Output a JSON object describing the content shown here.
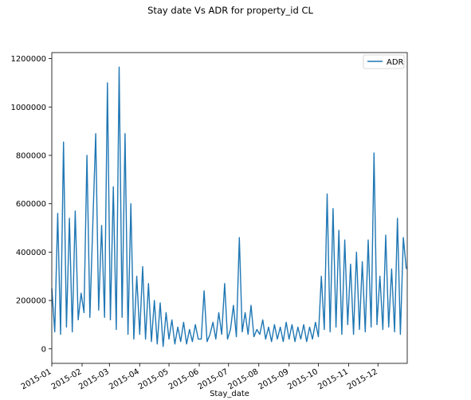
{
  "chart_data": {
    "type": "line",
    "title": "Stay date Vs ADR for property_id CL",
    "xlabel": "Stay_date",
    "ylabel": "",
    "x_tick_labels": [
      "2015-01",
      "2015-02",
      "2015-03",
      "2015-04",
      "2015-05",
      "2015-06",
      "2015-07",
      "2015-08",
      "2015-09",
      "2015-10",
      "2015-11",
      "2015-12"
    ],
    "y_tick_labels": [
      "0",
      "200000",
      "400000",
      "600000",
      "800000",
      "1000000",
      "1200000"
    ],
    "y_ticks": [
      0,
      200000,
      400000,
      600000,
      800000,
      1000000,
      1200000
    ],
    "ylim": [
      -60000,
      1225000
    ],
    "xlim": [
      "2015-01-01",
      "2015-12-31"
    ],
    "legend": {
      "position": "upper right",
      "entries": [
        "ADR"
      ]
    },
    "grid": false,
    "color": "#1f77b4",
    "series": [
      {
        "name": "ADR",
        "x": [
          "2015-01-01",
          "2015-01-04",
          "2015-01-07",
          "2015-01-10",
          "2015-01-13",
          "2015-01-16",
          "2015-01-19",
          "2015-01-22",
          "2015-01-25",
          "2015-01-28",
          "2015-01-31",
          "2015-02-03",
          "2015-02-06",
          "2015-02-09",
          "2015-02-12",
          "2015-02-15",
          "2015-02-18",
          "2015-02-21",
          "2015-02-24",
          "2015-02-27",
          "2015-03-02",
          "2015-03-05",
          "2015-03-08",
          "2015-03-11",
          "2015-03-14",
          "2015-03-17",
          "2015-03-20",
          "2015-03-23",
          "2015-03-26",
          "2015-03-29",
          "2015-04-01",
          "2015-04-04",
          "2015-04-07",
          "2015-04-10",
          "2015-04-13",
          "2015-04-16",
          "2015-04-19",
          "2015-04-22",
          "2015-04-25",
          "2015-04-28",
          "2015-05-01",
          "2015-05-04",
          "2015-05-07",
          "2015-05-10",
          "2015-05-13",
          "2015-05-16",
          "2015-05-19",
          "2015-05-22",
          "2015-05-25",
          "2015-05-28",
          "2015-05-31",
          "2015-06-03",
          "2015-06-06",
          "2015-06-09",
          "2015-06-12",
          "2015-06-15",
          "2015-06-18",
          "2015-06-21",
          "2015-06-24",
          "2015-06-27",
          "2015-06-30",
          "2015-07-03",
          "2015-07-06",
          "2015-07-09",
          "2015-07-12",
          "2015-07-15",
          "2015-07-18",
          "2015-07-21",
          "2015-07-24",
          "2015-07-27",
          "2015-07-30",
          "2015-08-02",
          "2015-08-05",
          "2015-08-08",
          "2015-08-11",
          "2015-08-14",
          "2015-08-17",
          "2015-08-20",
          "2015-08-23",
          "2015-08-26",
          "2015-08-29",
          "2015-09-01",
          "2015-09-04",
          "2015-09-07",
          "2015-09-10",
          "2015-09-13",
          "2015-09-16",
          "2015-09-19",
          "2015-09-22",
          "2015-09-25",
          "2015-09-28",
          "2015-10-01",
          "2015-10-04",
          "2015-10-07",
          "2015-10-10",
          "2015-10-13",
          "2015-10-16",
          "2015-10-19",
          "2015-10-22",
          "2015-10-25",
          "2015-10-28",
          "2015-10-31",
          "2015-11-03",
          "2015-11-06",
          "2015-11-09",
          "2015-11-12",
          "2015-11-15",
          "2015-11-18",
          "2015-11-21",
          "2015-11-24",
          "2015-11-27",
          "2015-11-30",
          "2015-12-03",
          "2015-12-06",
          "2015-12-09",
          "2015-12-12",
          "2015-12-15",
          "2015-12-18",
          "2015-12-21",
          "2015-12-24",
          "2015-12-27",
          "2015-12-30"
        ],
        "values": [
          250000,
          70000,
          560000,
          60000,
          855000,
          90000,
          540000,
          70000,
          570000,
          120000,
          230000,
          150000,
          800000,
          130000,
          520000,
          890000,
          160000,
          510000,
          130000,
          1100000,
          120000,
          670000,
          80000,
          1165000,
          130000,
          890000,
          60000,
          600000,
          40000,
          300000,
          60000,
          340000,
          40000,
          270000,
          30000,
          200000,
          20000,
          190000,
          10000,
          150000,
          40000,
          120000,
          20000,
          90000,
          30000,
          110000,
          20000,
          80000,
          30000,
          100000,
          40000,
          40000,
          240000,
          30000,
          60000,
          110000,
          40000,
          150000,
          60000,
          270000,
          40000,
          80000,
          180000,
          50000,
          460000,
          70000,
          150000,
          60000,
          180000,
          50000,
          80000,
          60000,
          120000,
          40000,
          90000,
          30000,
          100000,
          40000,
          90000,
          30000,
          110000,
          40000,
          100000,
          30000,
          90000,
          40000,
          100000,
          30000,
          90000,
          40000,
          110000,
          50000,
          300000,
          80000,
          640000,
          70000,
          580000,
          90000,
          490000,
          60000,
          450000,
          100000,
          350000,
          60000,
          400000,
          80000,
          360000,
          70000,
          450000,
          90000,
          810000,
          100000,
          300000,
          80000,
          470000,
          90000,
          330000,
          70000,
          540000,
          60000,
          460000,
          330000
        ]
      }
    ]
  }
}
